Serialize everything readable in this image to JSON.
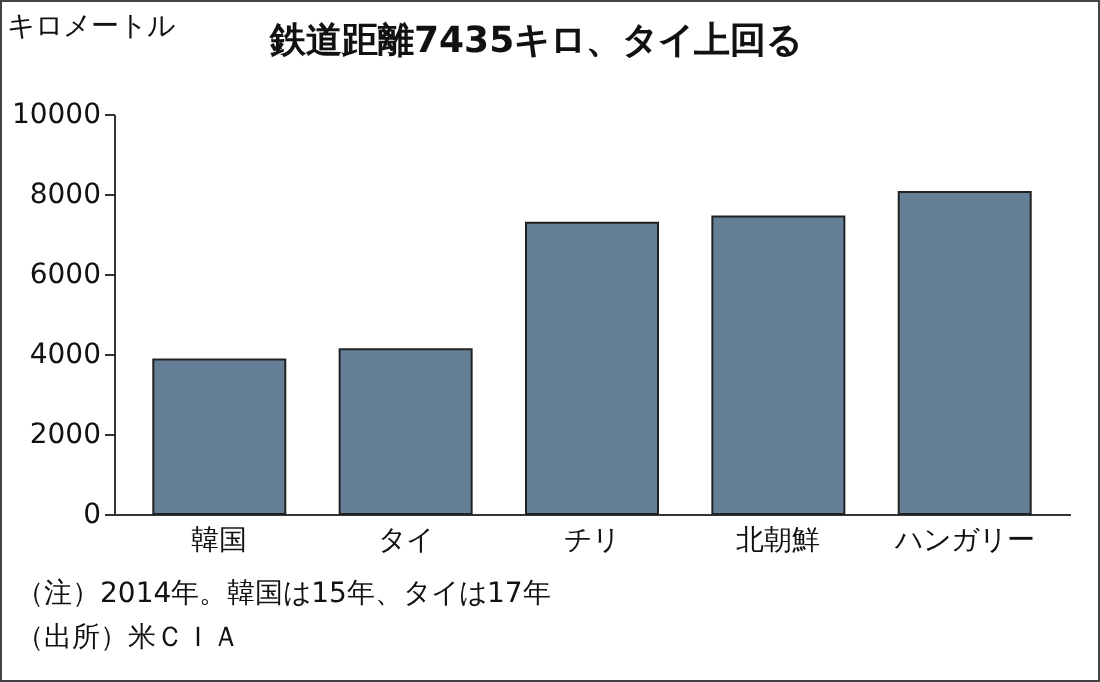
{
  "chart_data": {
    "type": "bar",
    "title": "鉄道距離7435キロ、タイ上回る",
    "ylabel": "キロメートル",
    "categories": [
      "韓国",
      "タイ",
      "チリ",
      "北朝鮮",
      "ハンガリー"
    ],
    "values": [
      3860,
      4120,
      7280,
      7435,
      8050
    ],
    "color": "#647f96",
    "ylim": [
      0,
      10000
    ],
    "yticks": [
      0,
      2000,
      4000,
      6000,
      8000,
      10000
    ],
    "grid": false,
    "annotations": [
      "（注）2014年。韓国は15年、タイは17年",
      "（出所）米ＣＩＡ"
    ]
  }
}
